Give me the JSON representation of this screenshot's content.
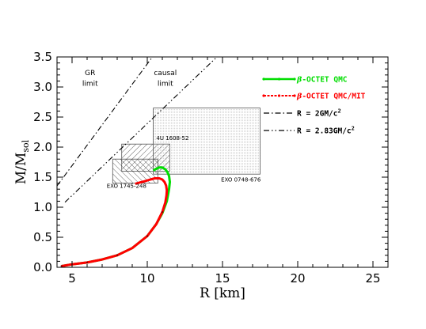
{
  "chart_data": {
    "type": "line",
    "xlabel": "R [km]",
    "ylabel_main": "M/M",
    "ylabel_sub": "sol",
    "xlim": [
      4,
      26
    ],
    "ylim": [
      0,
      3.5
    ],
    "xticks": [
      5,
      10,
      15,
      20,
      25
    ],
    "yticks": [
      0.0,
      0.5,
      1.0,
      1.5,
      2.0,
      2.5,
      3.0,
      3.5
    ],
    "xtick_labels": [
      "5",
      "10",
      "15",
      "20",
      "25"
    ],
    "ytick_labels": [
      "0.0",
      "0.5",
      "1.0",
      "1.5",
      "2.0",
      "2.5",
      "3.0",
      "3.5"
    ],
    "series": [
      {
        "name": "β-OCTET QMC",
        "color": "#00dd00",
        "x": [
          4.3,
          5.0,
          6.0,
          7.0,
          8.0,
          9.0,
          10.0,
          10.6,
          11.0,
          11.3,
          11.45,
          11.5,
          11.45,
          11.35,
          11.2,
          11.0,
          10.8,
          10.6,
          10.4
        ],
        "y": [
          0.02,
          0.05,
          0.08,
          0.13,
          0.2,
          0.32,
          0.52,
          0.72,
          0.9,
          1.1,
          1.3,
          1.42,
          1.52,
          1.58,
          1.63,
          1.66,
          1.66,
          1.64,
          1.61
        ]
      },
      {
        "name": "β-OCTET QMC/MIT",
        "color": "#ff0000",
        "x": [
          4.3,
          5.0,
          6.0,
          7.0,
          8.0,
          9.0,
          10.0,
          10.6,
          11.0,
          11.2,
          11.28,
          11.3,
          11.25,
          11.15,
          11.0,
          10.8,
          10.5,
          10.2,
          9.8,
          9.5,
          9.2
        ],
        "y": [
          0.02,
          0.05,
          0.08,
          0.13,
          0.2,
          0.32,
          0.52,
          0.72,
          0.92,
          1.08,
          1.2,
          1.28,
          1.36,
          1.42,
          1.46,
          1.48,
          1.48,
          1.46,
          1.43,
          1.41,
          1.39
        ]
      },
      {
        "name": "R = 2GM/c²",
        "line_style": "dash-dot",
        "x": [
          4.0,
          10.34
        ],
        "y": [
          1.354,
          3.5
        ]
      },
      {
        "name": "R = 2.83GM/c²",
        "line_style": "dash-double-dot",
        "x": [
          4.53,
          14.63
        ],
        "y": [
          1.083,
          3.5
        ]
      }
    ],
    "legend": {
      "placement": "right",
      "entries": [
        {
          "prefix": "β",
          "text": "-OCTET QMC",
          "color": "#00dd00",
          "style": "green"
        },
        {
          "prefix": "β",
          "text": "-OCTET QMC/MIT",
          "color": "#ff0000",
          "style": "red"
        },
        {
          "prefix": "",
          "text": "R = 2GM/c",
          "sup": "2",
          "color": "#000000",
          "style": "dash-dot"
        },
        {
          "prefix": "",
          "text": "R = 2.83GM/c",
          "sup": "2",
          "color": "#000000",
          "style": "dash-double-dot"
        }
      ]
    },
    "annotations": [
      {
        "text": "GR",
        "x": 6.2,
        "y": 3.2
      },
      {
        "text": "limit",
        "x": 6.2,
        "y": 3.02
      },
      {
        "text": "causal",
        "x": 11.2,
        "y": 3.2
      },
      {
        "text": "limit",
        "x": 11.2,
        "y": 3.02
      }
    ],
    "regions": [
      {
        "label": "4U 1608-52",
        "x": [
          8.3,
          11.5
        ],
        "y": [
          1.6,
          2.05
        ],
        "hatch": "diag",
        "label_x": 10.6,
        "label_y": 2.12
      },
      {
        "label": "EXO 1745-248",
        "x": [
          7.7,
          10.7
        ],
        "y": [
          1.4,
          1.8
        ],
        "hatch": "diag-rev",
        "label_x": 7.3,
        "label_y": 1.32
      },
      {
        "label": "EXO 0748-676",
        "x": [
          10.4,
          17.5
        ],
        "y": [
          1.55,
          2.65
        ],
        "hatch": "dots",
        "label_x": 14.9,
        "label_y": 1.43
      }
    ]
  }
}
